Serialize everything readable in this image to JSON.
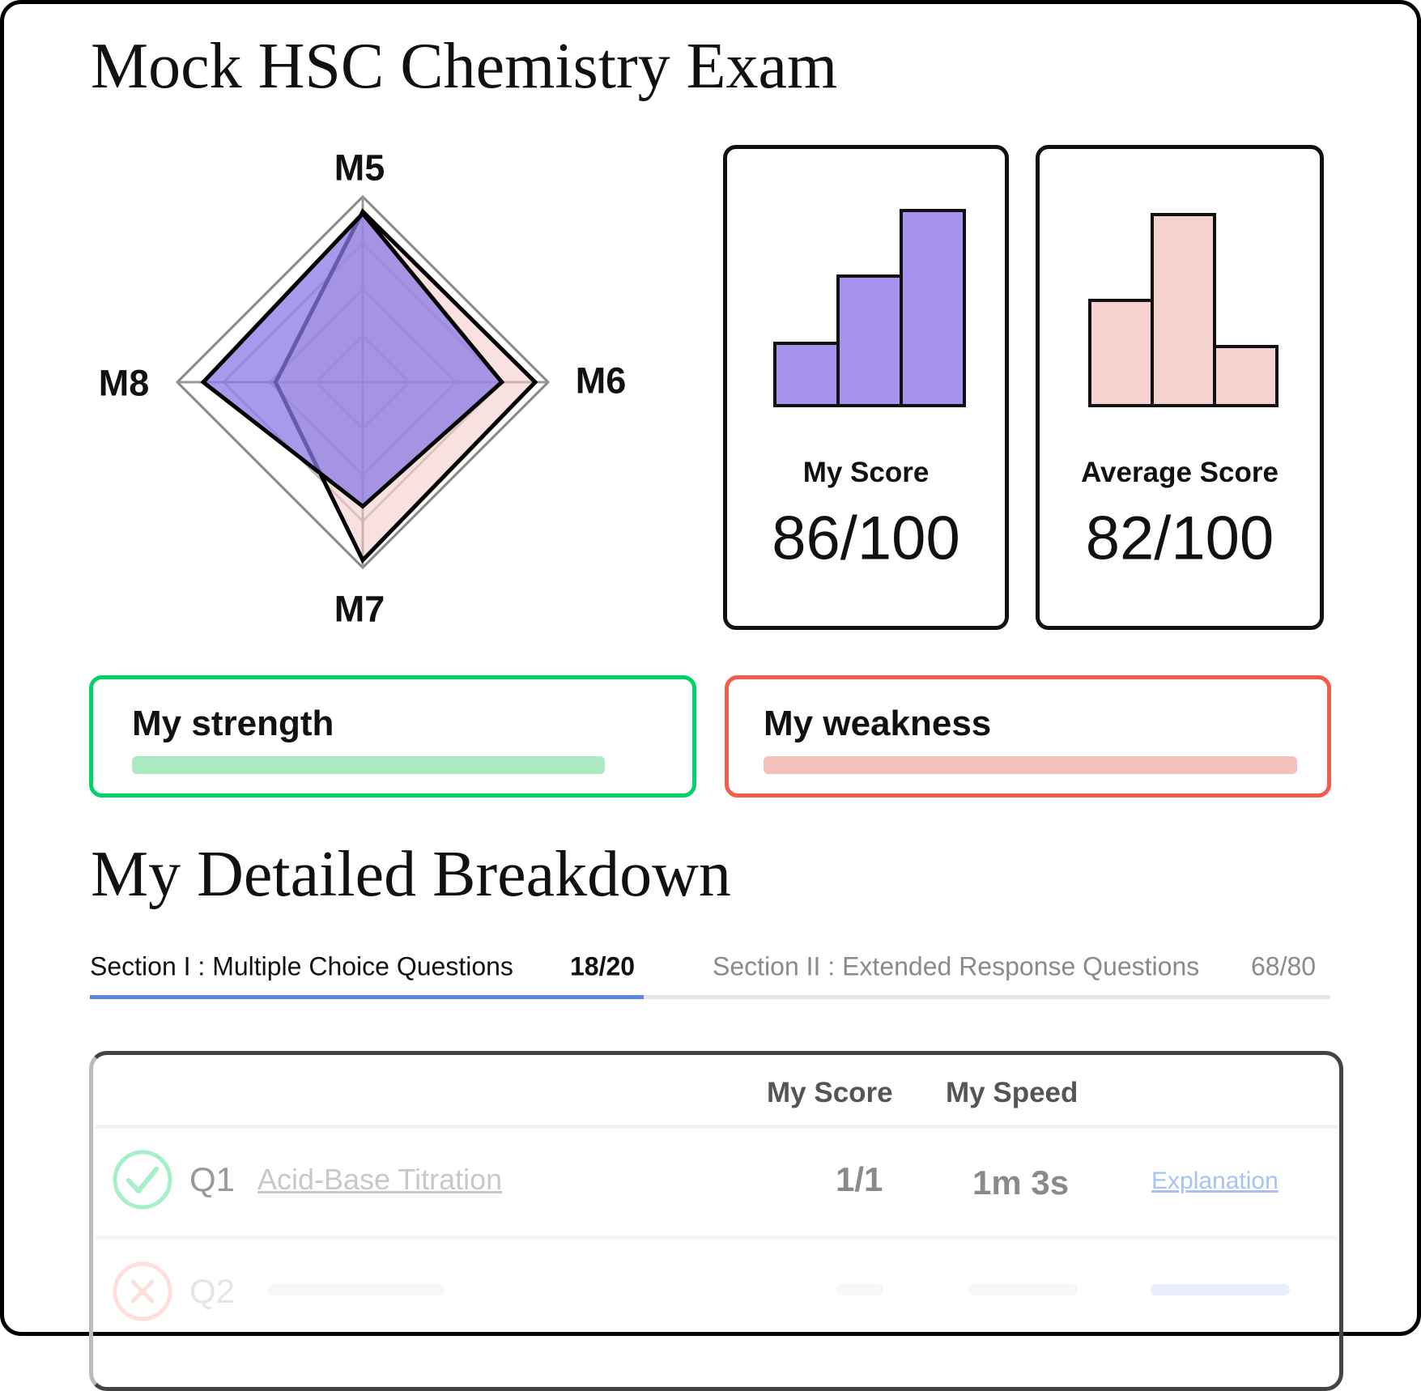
{
  "title": "Mock HSC Chemistry Exam",
  "chart_data": [
    {
      "type": "radar",
      "categories": [
        "M5",
        "M6",
        "M7",
        "M8"
      ],
      "rlim": [
        0,
        100
      ],
      "grid": true,
      "grid_levels": [
        25,
        50,
        75,
        100
      ],
      "series": [
        {
          "values": [
            92,
            93,
            96,
            47
          ],
          "color": "#f2c9c4"
        },
        {
          "values": [
            91,
            75,
            67,
            86
          ],
          "color": "#8a78e6"
        }
      ]
    },
    {
      "type": "bar",
      "title": "My Score",
      "values": [
        33,
        67,
        100
      ],
      "color": "#a793ef"
    },
    {
      "type": "bar",
      "title": "Average Score",
      "values": [
        56,
        100,
        32
      ],
      "color": "#f5d1cf"
    }
  ],
  "scores": {
    "mine": {
      "label": "My Score",
      "value": "86/100"
    },
    "average": {
      "label": "Average Score",
      "value": "82/100"
    }
  },
  "strength": {
    "label": "My strength",
    "color": "#00d26a",
    "bar_color": "#abebc3"
  },
  "weakness": {
    "label": "My weakness",
    "color": "#f55a4e",
    "bar_color": "#f4c0ba"
  },
  "breakdown": {
    "title": "My Detailed Breakdown",
    "tabs": [
      {
        "label": "Section I : Multiple Choice Questions",
        "score": "18/20",
        "active": true
      },
      {
        "label": "Section II : Extended Response Questions",
        "score": "68/80",
        "active": false
      }
    ],
    "accent": "#5b86e5",
    "table": {
      "headers": {
        "score": "My Score",
        "speed": "My Speed"
      },
      "rows": [
        {
          "status": "correct",
          "id": "Q1",
          "topic": "Acid-Base Titration",
          "score": "1/1",
          "speed": "1m 3s",
          "link": "Explanation"
        },
        {
          "status": "incorrect",
          "id": "Q2"
        }
      ]
    }
  }
}
